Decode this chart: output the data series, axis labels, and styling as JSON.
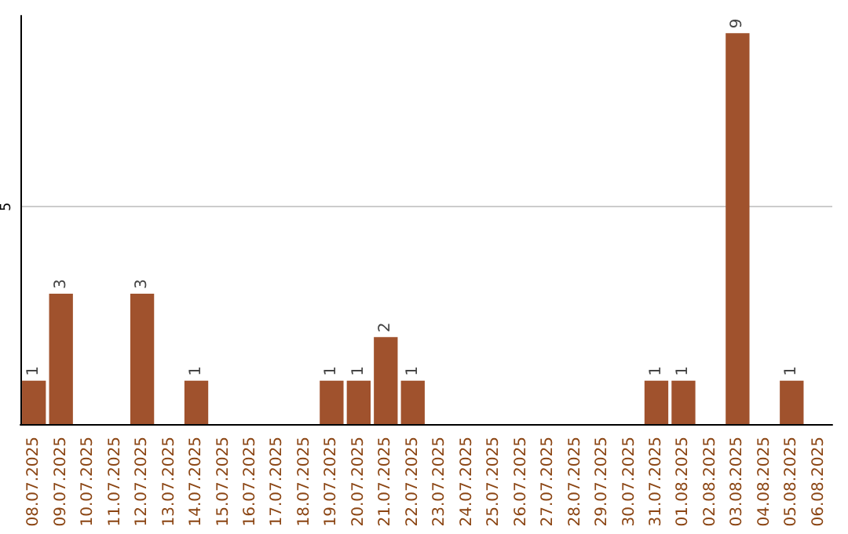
{
  "chart_data": {
    "type": "bar",
    "categories": [
      "08.07.2025",
      "09.07.2025",
      "10.07.2025",
      "11.07.2025",
      "12.07.2025",
      "13.07.2025",
      "14.07.2025",
      "15.07.2025",
      "16.07.2025",
      "17.07.2025",
      "18.07.2025",
      "19.07.2025",
      "20.07.2025",
      "21.07.2025",
      "22.07.2025",
      "23.07.2025",
      "24.07.2025",
      "25.07.2025",
      "26.07.2025",
      "27.07.2025",
      "28.07.2025",
      "29.07.2025",
      "30.07.2025",
      "31.07.2025",
      "01.08.2025",
      "02.08.2025",
      "03.08.2025",
      "04.08.2025",
      "05.08.2025",
      "06.08.2025"
    ],
    "values": [
      1,
      3,
      0,
      0,
      3,
      0,
      1,
      0,
      0,
      0,
      0,
      1,
      1,
      2,
      1,
      0,
      0,
      0,
      0,
      0,
      0,
      0,
      0,
      1,
      1,
      0,
      9,
      0,
      1,
      0
    ],
    "value_labels": [
      "1",
      "3",
      null,
      null,
      "3",
      null,
      "1",
      null,
      null,
      null,
      null,
      "1",
      "1",
      "2",
      "1",
      null,
      null,
      null,
      null,
      null,
      null,
      null,
      null,
      "1",
      "1",
      null,
      "9",
      null,
      "1",
      null
    ],
    "color": "#a0522d",
    "ylim": [
      0,
      9.4
    ],
    "yticks": [
      {
        "value": 0,
        "label": null
      },
      5
    ],
    "grid": "y"
  }
}
